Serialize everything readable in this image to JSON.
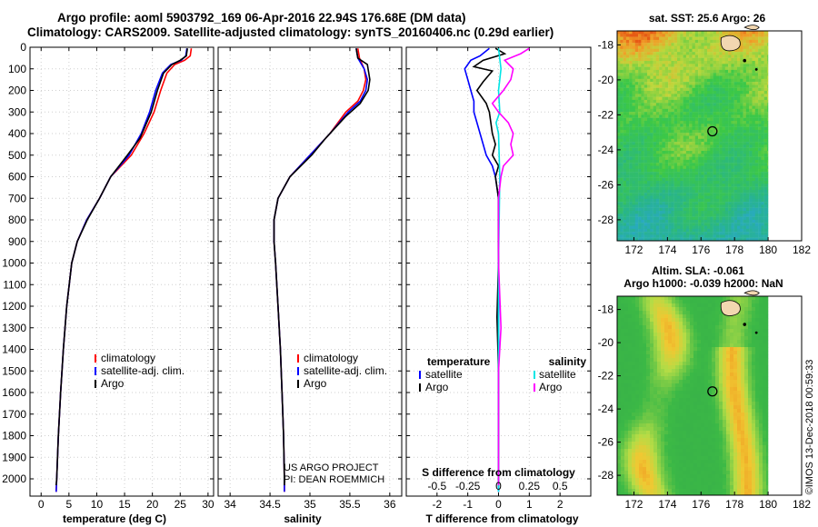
{
  "header": {
    "line1": "Argo profile: aoml 5903792_169 06-Apr-2016 22.94S 176.68E (DM data)",
    "line2": "Climatology: CARS2009. Satellite-adjusted climatology: synTS_20160406.nc (0.29d earlier)"
  },
  "colors": {
    "climatology": "#ff0000",
    "satellite": "#0000ff",
    "argo": "#000000",
    "sal_satellite": "#00e5e5",
    "sal_argo": "#ff00ff"
  },
  "chart_data": [
    {
      "type": "line",
      "id": "temperature",
      "xlabel": "temperature (deg C)",
      "ylabel": "",
      "xlim": [
        -2,
        31
      ],
      "ylim": [
        2080,
        0
      ],
      "xticks": [
        0,
        5,
        10,
        15,
        20,
        25,
        30
      ],
      "yticks": [
        0,
        100,
        200,
        300,
        400,
        500,
        600,
        700,
        800,
        900,
        1000,
        1100,
        1200,
        1300,
        1400,
        1500,
        1600,
        1700,
        1800,
        1900,
        2000
      ],
      "legend": [
        "climatology",
        "satellite-adj. clim.",
        "Argo"
      ],
      "series": [
        {
          "name": "climatology",
          "points": [
            [
              27.0,
              5
            ],
            [
              26.8,
              40
            ],
            [
              25.8,
              60
            ],
            [
              24.0,
              80
            ],
            [
              22.6,
              120
            ],
            [
              21.5,
              200
            ],
            [
              20.3,
              300
            ],
            [
              18.5,
              400
            ],
            [
              16.2,
              500
            ],
            [
              12.5,
              600
            ],
            [
              10.5,
              700
            ],
            [
              8.2,
              800
            ],
            [
              6.5,
              900
            ],
            [
              5.5,
              1000
            ],
            [
              4.6,
              1200
            ],
            [
              4.0,
              1400
            ],
            [
              3.5,
              1600
            ],
            [
              3.1,
              1800
            ],
            [
              2.8,
              2000
            ],
            [
              2.7,
              2060
            ]
          ]
        },
        {
          "name": "satellite-adj. clim.",
          "points": [
            [
              26.2,
              5
            ],
            [
              26.0,
              40
            ],
            [
              25.2,
              60
            ],
            [
              23.3,
              80
            ],
            [
              21.8,
              120
            ],
            [
              20.6,
              200
            ],
            [
              19.5,
              300
            ],
            [
              18.0,
              400
            ],
            [
              15.8,
              500
            ],
            [
              12.5,
              600
            ],
            [
              10.5,
              700
            ],
            [
              8.2,
              800
            ],
            [
              6.5,
              900
            ],
            [
              5.5,
              1000
            ],
            [
              4.6,
              1200
            ],
            [
              4.0,
              1400
            ],
            [
              3.5,
              1600
            ],
            [
              3.1,
              1800
            ],
            [
              2.8,
              2000
            ],
            [
              2.7,
              2060
            ]
          ]
        },
        {
          "name": "Argo",
          "points": [
            [
              26.3,
              5
            ],
            [
              26.1,
              40
            ],
            [
              25.0,
              60
            ],
            [
              23.5,
              80
            ],
            [
              22.0,
              120
            ],
            [
              20.9,
              200
            ],
            [
              19.8,
              300
            ],
            [
              17.8,
              420
            ],
            [
              15.5,
              500
            ],
            [
              12.5,
              600
            ],
            [
              10.5,
              700
            ],
            [
              8.3,
              800
            ],
            [
              6.5,
              900
            ],
            [
              5.5,
              1000
            ],
            [
              4.6,
              1200
            ],
            [
              4.0,
              1400
            ],
            [
              3.5,
              1600
            ],
            [
              3.1,
              1800
            ],
            [
              2.8,
              2000
            ],
            [
              2.7,
              2030
            ]
          ]
        }
      ]
    },
    {
      "type": "line",
      "id": "salinity",
      "xlabel": "salinity",
      "xlim": [
        33.85,
        36.15
      ],
      "ylim": [
        2080,
        0
      ],
      "xticks": [
        34,
        34.5,
        35,
        35.5,
        36
      ],
      "legend": [
        "climatology",
        "satellite-adj. clim.",
        "Argo"
      ],
      "series": [
        {
          "name": "climatology",
          "points": [
            [
              35.6,
              5
            ],
            [
              35.62,
              50
            ],
            [
              35.68,
              100
            ],
            [
              35.7,
              150
            ],
            [
              35.67,
              200
            ],
            [
              35.6,
              250
            ],
            [
              35.45,
              300
            ],
            [
              35.25,
              400
            ],
            [
              35.0,
              500
            ],
            [
              34.75,
              600
            ],
            [
              34.6,
              700
            ],
            [
              34.55,
              800
            ],
            [
              34.55,
              900
            ],
            [
              34.57,
              1000
            ],
            [
              34.6,
              1200
            ],
            [
              34.63,
              1400
            ],
            [
              34.65,
              1600
            ],
            [
              34.67,
              1800
            ],
            [
              34.68,
              2000
            ],
            [
              34.68,
              2060
            ]
          ]
        },
        {
          "name": "satellite-adj. clim.",
          "points": [
            [
              35.58,
              5
            ],
            [
              35.6,
              50
            ],
            [
              35.68,
              100
            ],
            [
              35.72,
              150
            ],
            [
              35.7,
              200
            ],
            [
              35.63,
              250
            ],
            [
              35.48,
              300
            ],
            [
              35.25,
              400
            ],
            [
              35.0,
              500
            ],
            [
              34.75,
              600
            ],
            [
              34.6,
              700
            ],
            [
              34.55,
              800
            ],
            [
              34.55,
              900
            ],
            [
              34.57,
              1000
            ],
            [
              34.6,
              1200
            ],
            [
              34.63,
              1400
            ],
            [
              34.65,
              1600
            ],
            [
              34.67,
              1800
            ],
            [
              34.68,
              2000
            ],
            [
              34.68,
              2060
            ]
          ]
        },
        {
          "name": "Argo",
          "points": [
            [
              35.58,
              5
            ],
            [
              35.6,
              50
            ],
            [
              35.72,
              80
            ],
            [
              35.75,
              150
            ],
            [
              35.73,
              200
            ],
            [
              35.63,
              260
            ],
            [
              35.45,
              320
            ],
            [
              35.2,
              420
            ],
            [
              35.02,
              500
            ],
            [
              34.75,
              600
            ],
            [
              34.6,
              700
            ],
            [
              34.55,
              800
            ],
            [
              34.55,
              900
            ],
            [
              34.57,
              1000
            ],
            [
              34.6,
              1200
            ],
            [
              34.63,
              1400
            ],
            [
              34.65,
              1600
            ],
            [
              34.67,
              1800
            ],
            [
              34.68,
              2000
            ],
            [
              34.68,
              2030
            ]
          ]
        }
      ],
      "annotations": [
        "US ARGO PROJECT",
        "PI: DEAN ROEMMICH"
      ]
    },
    {
      "type": "line",
      "id": "difference",
      "xlabel": "T difference from climatology",
      "xlabel2": "S difference from climatology",
      "xlim": [
        -3,
        3
      ],
      "ylim": [
        2080,
        0
      ],
      "xticks": [
        -2,
        -1,
        0,
        1,
        2
      ],
      "xticks2": [
        -0.5,
        -0.25,
        0,
        0.25,
        0.5
      ],
      "xticklabels2": [
        "-0.5",
        "-0.25",
        "0",
        "0.25",
        "0.5"
      ],
      "legend_temperature": {
        "title": "temperature",
        "items": [
          "satellite",
          "Argo"
        ]
      },
      "legend_salinity": {
        "title": "salinity",
        "items": [
          "satellite",
          "Argo"
        ]
      },
      "series": [
        {
          "name": "T satellite",
          "points": [
            [
              -0.3,
              5
            ],
            [
              -0.6,
              40
            ],
            [
              -0.9,
              60
            ],
            [
              -1.1,
              100
            ],
            [
              -1.0,
              150
            ],
            [
              -0.9,
              200
            ],
            [
              -0.8,
              250
            ],
            [
              -0.8,
              300
            ],
            [
              -0.7,
              350
            ],
            [
              -0.6,
              400
            ],
            [
              -0.5,
              450
            ],
            [
              -0.4,
              500
            ],
            [
              -0.2,
              550
            ],
            [
              -0.1,
              600
            ],
            [
              0,
              700
            ],
            [
              0,
              1000
            ],
            [
              0,
              2060
            ]
          ]
        },
        {
          "name": "T Argo",
          "points": [
            [
              -0.1,
              5
            ],
            [
              0.2,
              30
            ],
            [
              -0.5,
              60
            ],
            [
              -0.8,
              90
            ],
            [
              -0.2,
              110
            ],
            [
              -0.5,
              160
            ],
            [
              -0.7,
              200
            ],
            [
              -0.4,
              260
            ],
            [
              -0.3,
              300
            ],
            [
              -0.2,
              400
            ],
            [
              -0.1,
              450
            ],
            [
              -0.2,
              500
            ],
            [
              0.0,
              550
            ],
            [
              -0.1,
              600
            ],
            [
              -0.05,
              650
            ],
            [
              0,
              700
            ],
            [
              0,
              1000
            ],
            [
              -0.05,
              1250
            ],
            [
              0,
              1500
            ],
            [
              0,
              2030
            ]
          ]
        },
        {
          "name": "S satellite",
          "points": [
            [
              0,
              5
            ],
            [
              0.02,
              100
            ],
            [
              0,
              200
            ],
            [
              0.01,
              300
            ],
            [
              -0.02,
              350
            ],
            [
              0,
              400
            ],
            [
              0.01,
              600
            ],
            [
              0,
              1000
            ],
            [
              0,
              2060
            ]
          ]
        },
        {
          "name": "S Argo",
          "points": [
            [
              0.25,
              5
            ],
            [
              0.18,
              30
            ],
            [
              0.05,
              60
            ],
            [
              0.12,
              100
            ],
            [
              0.1,
              150
            ],
            [
              0.04,
              200
            ],
            [
              -0.05,
              260
            ],
            [
              0.0,
              300
            ],
            [
              0.08,
              350
            ],
            [
              0.12,
              400
            ],
            [
              0.1,
              450
            ],
            [
              0.12,
              500
            ],
            [
              0.04,
              550
            ],
            [
              0.02,
              600
            ],
            [
              0,
              700
            ],
            [
              0,
              1000
            ],
            [
              0.02,
              1300
            ],
            [
              0,
              1500
            ],
            [
              0,
              2030
            ]
          ]
        }
      ]
    },
    {
      "type": "heatmap",
      "id": "sst",
      "title": "sat. SST: 25.6 Argo: 26",
      "xlim": [
        171,
        182
      ],
      "ylim": [
        -29.2,
        -17.2
      ],
      "xticks": [
        172,
        174,
        176,
        178,
        180,
        182
      ],
      "yticks": [
        -18,
        -20,
        -22,
        -24,
        -26,
        -28
      ],
      "marker": [
        176.68,
        -22.94
      ]
    },
    {
      "type": "heatmap",
      "id": "sla",
      "title": "Altim. SLA: -0.061",
      "subtitle": "Argo h1000: -0.039 h2000: NaN",
      "xlim": [
        171,
        182
      ],
      "ylim": [
        -29.2,
        -17.2
      ],
      "xticks": [
        172,
        174,
        176,
        178,
        180,
        182
      ],
      "yticks": [
        -18,
        -20,
        -22,
        -24,
        -26,
        -28
      ],
      "marker": [
        176.68,
        -22.94
      ]
    }
  ],
  "watermark": "©IMOS 13-Dec-2018 00:59:33"
}
